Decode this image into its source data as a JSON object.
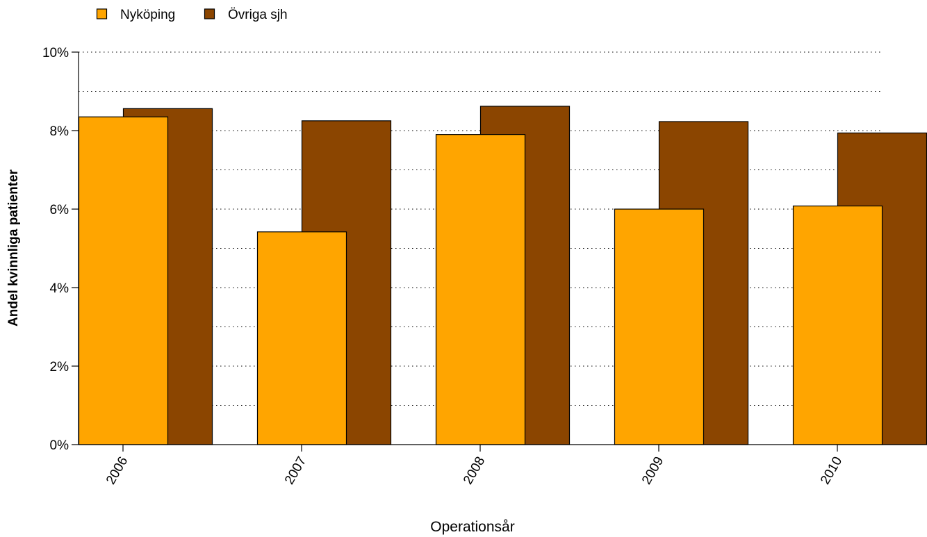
{
  "chart_data": {
    "type": "bar",
    "categories": [
      "2006",
      "2007",
      "2008",
      "2009",
      "2010"
    ],
    "series": [
      {
        "name": "Nyköping",
        "color": "#FFA500",
        "values": [
          8.35,
          5.42,
          7.9,
          6.0,
          6.08
        ]
      },
      {
        "name": "Övriga sjh",
        "color": "#8B4500",
        "values": [
          8.56,
          8.25,
          8.62,
          8.23,
          7.94
        ]
      }
    ],
    "xlabel": "Operationsår",
    "ylabel": "Andel kvinnliga patienter",
    "ylim": [
      0,
      10
    ],
    "yticks": [
      0,
      2,
      4,
      6,
      8,
      10
    ],
    "ytick_labels": [
      "0%",
      "2%",
      "4%",
      "6%",
      "8%",
      "10%"
    ],
    "grid": true,
    "grid_style": "dotted",
    "legend_position": "top-left"
  }
}
